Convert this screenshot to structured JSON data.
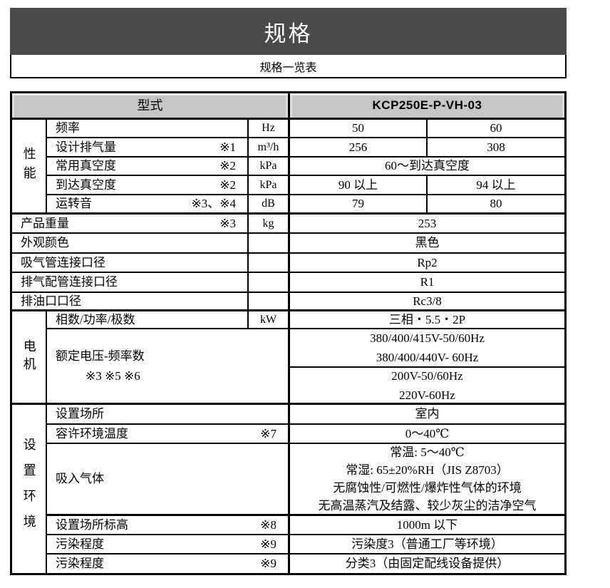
{
  "colors": {
    "title_bar_bg": "#4a4a4a",
    "header_cell_bg": "#c6c6c6",
    "border": "#000000"
  },
  "page": {
    "title": "规格",
    "subtitle": "规格一览表"
  },
  "table": {
    "header": {
      "model_label": "型式",
      "model_value": "KCP250E-P-VH-03"
    },
    "groups": {
      "performance": "性能",
      "motor": "电机",
      "environment": "设置环境"
    },
    "rows": {
      "frequency": {
        "label": "频率",
        "remark": "",
        "unit": "Hz",
        "v50": "50",
        "v60": "60"
      },
      "displacement": {
        "label": "设计排气量",
        "remark": "※1",
        "unit": "m³/h",
        "v50": "256",
        "v60": "308"
      },
      "working_vacuum": {
        "label": "常用真空度",
        "remark": "※2",
        "unit": "kPa",
        "value": "60～到达真空度"
      },
      "ultimate_vacuum": {
        "label": "到达真空度",
        "remark": "※2",
        "unit": "kPa",
        "v50": "90 以上",
        "v60": "94 以上"
      },
      "noise": {
        "label": "运转音",
        "remark": "※3、※4",
        "unit": "dB",
        "v50": "79",
        "v60": "80"
      },
      "weight": {
        "label": "产品重量",
        "remark": "※3",
        "unit": "kg",
        "value": "253"
      },
      "color": {
        "label": "外观颜色",
        "unit": "",
        "value": "黑色"
      },
      "suction_port": {
        "label": "吸气管连接口径",
        "unit": "",
        "value": "Rp2"
      },
      "discharge_port": {
        "label": "排气配管连接口径",
        "unit": "",
        "value": "R1"
      },
      "oil_drain_port": {
        "label": "排油口口径",
        "unit": "",
        "value": "Rc3/8"
      },
      "phase_power_pole": {
        "label": "相数/功率/极数",
        "remark": "",
        "unit": "kW",
        "value": "三相・5.5・2P"
      },
      "rated_voltage": {
        "label_line1": "额定电压-频率数",
        "label_line2": "※3 ※5 ※6",
        "group_a": [
          "380/400/415V-50/60Hz",
          "380/400/440V- 60Hz"
        ],
        "group_b": [
          "200V-50/60Hz",
          "220V-60Hz"
        ]
      },
      "location": {
        "label": "设置场所",
        "remark": "",
        "value": "室内"
      },
      "ambient_temp": {
        "label": "容许环境温度",
        "remark": "※7",
        "value": "0～40℃"
      },
      "intake_gas": {
        "label": "吸入气体",
        "remark": "",
        "value_lines": [
          "常温: 5～40℃",
          "常湿: 65±20%RH（JIS Z8703）",
          "无腐蚀性/可燃性/爆炸性气体的环境",
          "无高温蒸汽及结露、较少灰尘的洁净空气"
        ]
      },
      "altitude": {
        "label": "设置场所标高",
        "remark": "※8",
        "value": "1000m 以下"
      },
      "pollution1": {
        "label": "污染程度",
        "remark": "※9",
        "value": "污染度3（普通工厂等环境）"
      },
      "pollution2": {
        "label": "污染程度",
        "remark": "※9",
        "value": "分类3（由固定配线设备提供）"
      }
    }
  }
}
